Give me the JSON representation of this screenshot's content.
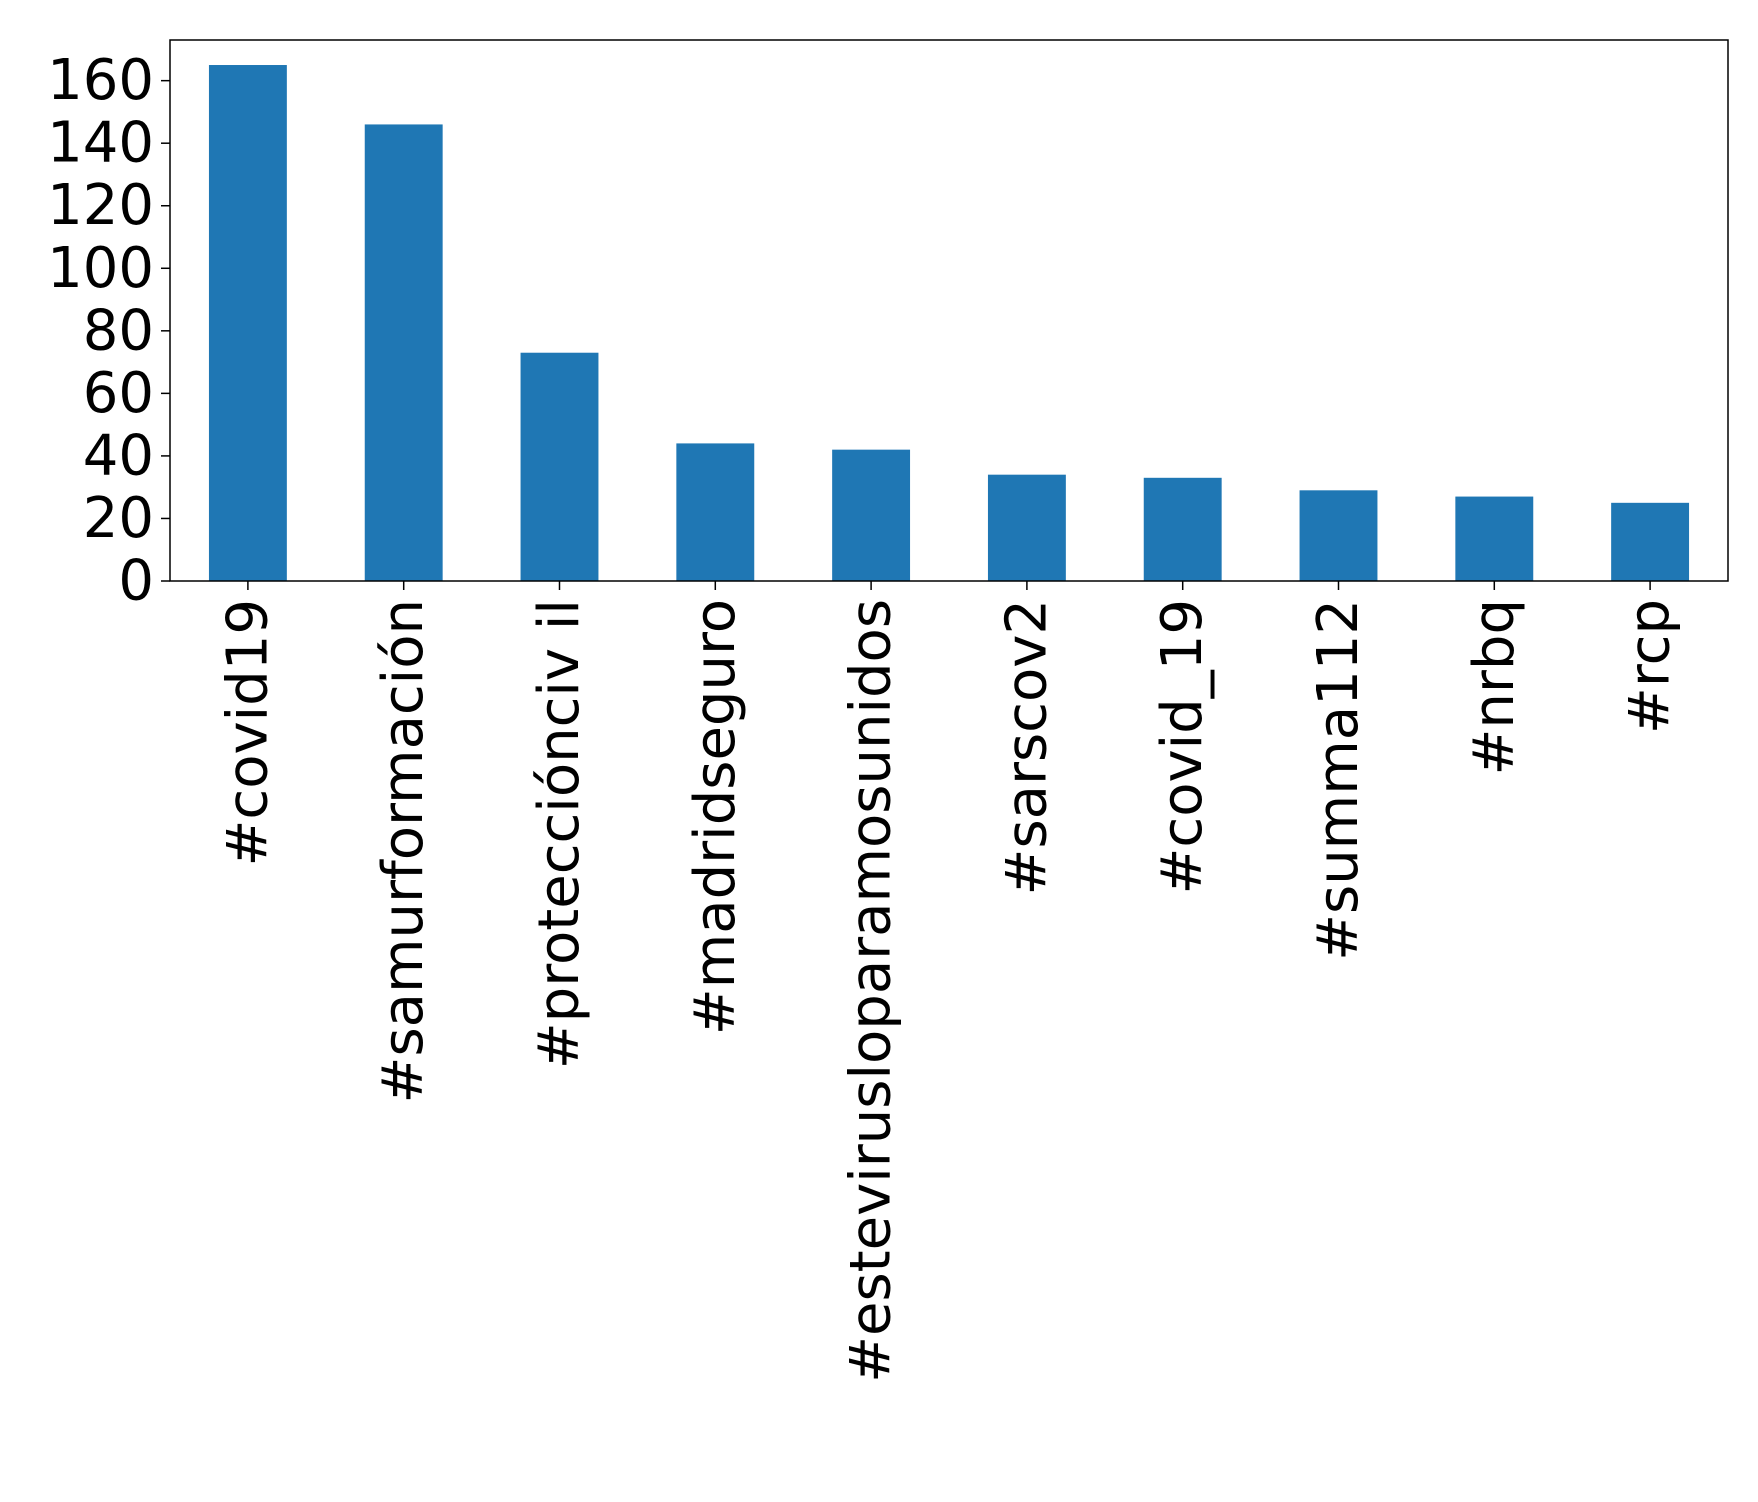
{
  "chart_data": {
    "type": "bar",
    "title": "",
    "xlabel": "",
    "ylabel": "",
    "categories": [
      "#covid19",
      "#samurformación",
      "#protecciónciv il",
      "#madridseguro",
      "#estevirusloparamosunidos",
      "#sarscov2",
      "#covid_19",
      "#summa112",
      "#nrbq",
      "#rcp"
    ],
    "values": [
      165,
      146,
      73,
      44,
      42,
      34,
      33,
      29,
      27,
      25
    ],
    "ylim": [
      0,
      173
    ],
    "yticks": [
      0,
      20,
      40,
      60,
      80,
      100,
      120,
      140,
      160
    ],
    "grid": false,
    "legend": "none",
    "bar_color": "#1f77b4"
  }
}
